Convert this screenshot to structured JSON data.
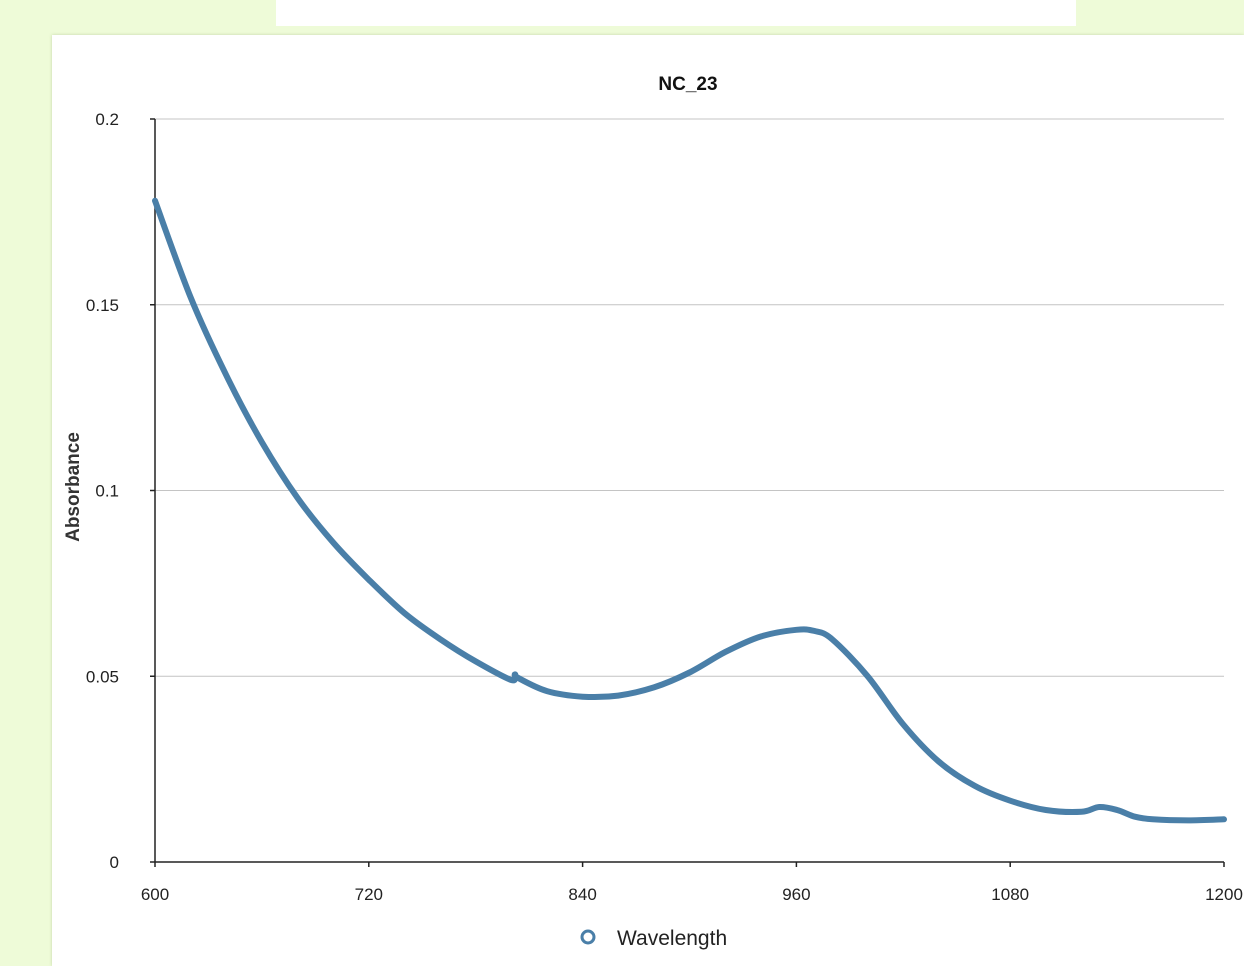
{
  "top_card": {
    "faint_text": ""
  },
  "chart_data": {
    "type": "line",
    "title": "NC_23",
    "xlabel": "",
    "ylabel": "Absorbance",
    "xlim": [
      600,
      1200
    ],
    "ylim": [
      0,
      0.2
    ],
    "x_ticks": [
      600,
      720,
      840,
      960,
      1080,
      1200
    ],
    "x_tick_labels": [
      "600",
      "720",
      "840",
      "960",
      "1080",
      "1200"
    ],
    "y_ticks": [
      0,
      0.05,
      0.1,
      0.15,
      0.2
    ],
    "y_tick_labels": [
      "0",
      "0.05",
      "0.1",
      "0.15",
      "0.2"
    ],
    "grid": "horizontal",
    "legend": {
      "position": "bottom-center",
      "entries": [
        "Wavelength"
      ]
    },
    "series": [
      {
        "name": "Wavelength",
        "color": "#4a7fa8",
        "x": [
          600,
          620,
          640,
          660,
          680,
          700,
          720,
          740,
          760,
          780,
          800,
          802,
          804,
          820,
          840,
          860,
          880,
          900,
          920,
          940,
          960,
          970,
          980,
          1000,
          1020,
          1040,
          1060,
          1080,
          1100,
          1120,
          1130,
          1140,
          1150,
          1160,
          1180,
          1200
        ],
        "y": [
          0.178,
          0.152,
          0.131,
          0.113,
          0.098,
          0.086,
          0.076,
          0.067,
          0.06,
          0.054,
          0.049,
          0.0505,
          0.0495,
          0.046,
          0.0445,
          0.0448,
          0.047,
          0.051,
          0.0565,
          0.0607,
          0.0625,
          0.0622,
          0.06,
          0.05,
          0.037,
          0.027,
          0.0205,
          0.0165,
          0.014,
          0.0135,
          0.0148,
          0.014,
          0.0122,
          0.0115,
          0.0112,
          0.0115
        ]
      }
    ]
  }
}
